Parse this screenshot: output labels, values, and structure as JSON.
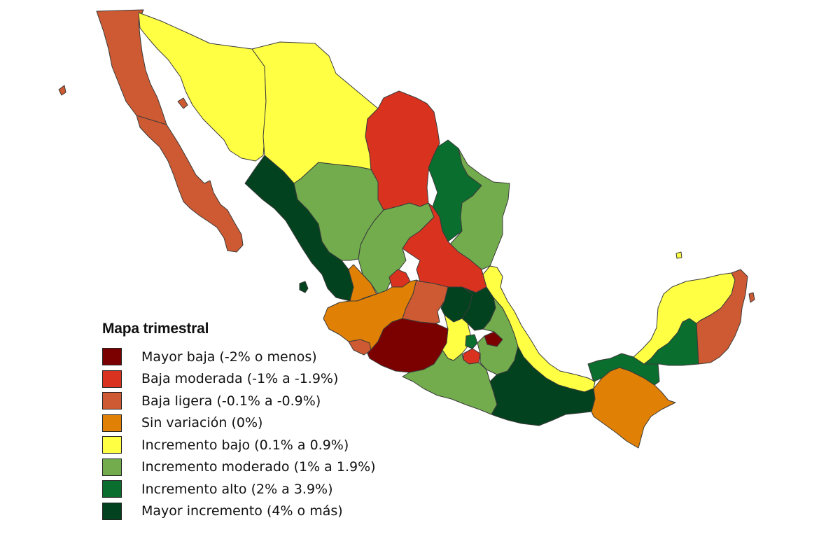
{
  "legend": {
    "title": "Mapa trimestral",
    "items": [
      {
        "label": "Mayor baja (-2% o menos)",
        "color": "#7b0000"
      },
      {
        "label": "Baja moderada (-1% a -1.9%)",
        "color": "#d93320"
      },
      {
        "label": "Baja ligera (-0.1% a -0.9%)",
        "color": "#cd5a32"
      },
      {
        "label": "Sin variación (0%)",
        "color": "#e08005"
      },
      {
        "label": "Incremento bajo (0.1% a 0.9%)",
        "color": "#ffff44"
      },
      {
        "label": "Incremento moderado (1% a 1.9%)",
        "color": "#72ac4d"
      },
      {
        "label": "Incremento alto (2% a 3.9%)",
        "color": "#0a6e2e"
      },
      {
        "label": "Mayor incremento (4% o más)",
        "color": "#03421e"
      }
    ]
  },
  "regions": [
    {
      "name": "baja-california",
      "category": 2
    },
    {
      "name": "baja-california-sur",
      "category": 2
    },
    {
      "name": "sonora",
      "category": 4
    },
    {
      "name": "chihuahua",
      "category": 4
    },
    {
      "name": "coahuila",
      "category": 1
    },
    {
      "name": "nuevo-leon",
      "category": 6
    },
    {
      "name": "tamaulipas",
      "category": 5
    },
    {
      "name": "sinaloa",
      "category": 7
    },
    {
      "name": "durango",
      "category": 5
    },
    {
      "name": "zacatecas",
      "category": 5
    },
    {
      "name": "san-luis-potosi",
      "category": 1
    },
    {
      "name": "nayarit",
      "category": 3
    },
    {
      "name": "aguascalientes",
      "category": 1
    },
    {
      "name": "jalisco",
      "category": 3
    },
    {
      "name": "colima",
      "category": 2
    },
    {
      "name": "michoacan",
      "category": 0
    },
    {
      "name": "guanajuato",
      "category": 2
    },
    {
      "name": "queretaro",
      "category": 7
    },
    {
      "name": "hidalgo",
      "category": 7
    },
    {
      "name": "estado-de-mexico",
      "category": 4
    },
    {
      "name": "ciudad-de-mexico",
      "category": 6
    },
    {
      "name": "morelos",
      "category": 1
    },
    {
      "name": "tlaxcala",
      "category": 0
    },
    {
      "name": "puebla",
      "category": 5
    },
    {
      "name": "guerrero",
      "category": 5
    },
    {
      "name": "veracruz",
      "category": 4
    },
    {
      "name": "oaxaca",
      "category": 7
    },
    {
      "name": "chiapas",
      "category": 3
    },
    {
      "name": "tabasco",
      "category": 6
    },
    {
      "name": "campeche",
      "category": 6
    },
    {
      "name": "yucatan",
      "category": 4
    },
    {
      "name": "quintana-roo",
      "category": 2
    }
  ]
}
